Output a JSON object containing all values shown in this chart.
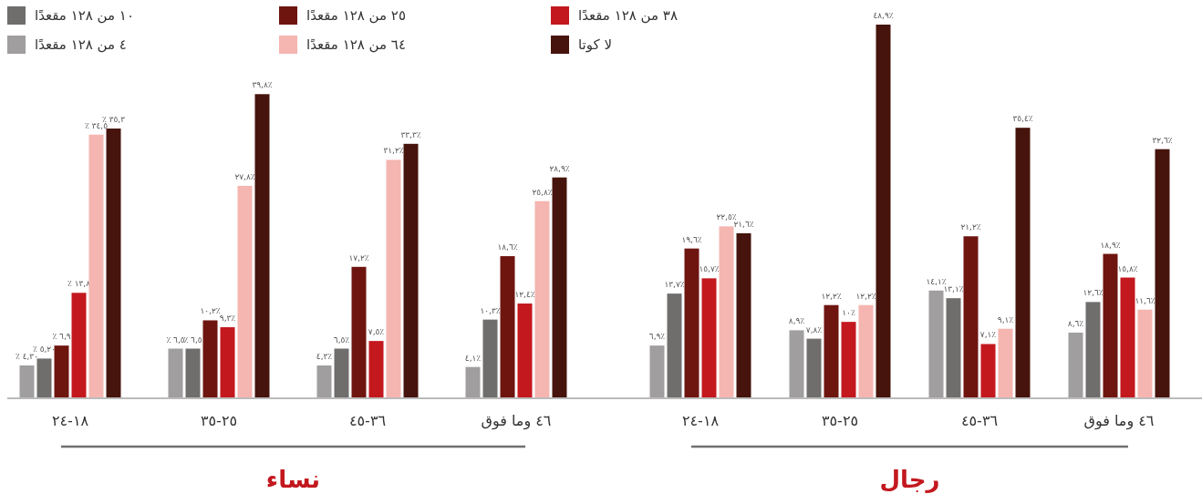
{
  "chart_data": {
    "type": "bar",
    "categories": [
      "١٨-٢٤",
      "٢٥-٣٥",
      "٣٦-٤٥",
      "٤٦ وما فوق",
      "١٨-٢٤",
      "٢٥-٣٥",
      "٣٦-٤٥",
      "٤٦ وما فوق"
    ],
    "series": [
      {
        "name": "٤ من ١٢٨ مقعدًا",
        "color": "#a09e9e",
        "values": [
          4.3,
          6.5,
          4.3,
          4.1,
          6.9,
          8.9,
          14.1,
          8.6
        ],
        "value_labels": [
          "٤,٣٠ ٪",
          "٦,٥ ٪",
          "٪٤,٣",
          "٪٤,١",
          "٪٦,٩",
          "٪٨,٩",
          "٪١٤,١",
          "٪٨,٦"
        ]
      },
      {
        "name": "١٠ من ١٢٨ مقعدًا",
        "color": "#706e6c",
        "values": [
          5.2,
          6.5,
          6.5,
          10.3,
          13.7,
          7.8,
          13.1,
          12.6
        ],
        "value_labels": [
          "٥,٢٠ ٪",
          "٦,٥ ٪",
          "٪٦,٥",
          "٪١٠,٣",
          "٪١٣,٧",
          "٪٧,٨",
          "٪١٣,١",
          "٪١٢,٦"
        ]
      },
      {
        "name": "٢٥ من ١٢٨ مقعدًا",
        "color": "#6e1510",
        "values": [
          6.9,
          10.2,
          17.2,
          18.6,
          19.6,
          12.2,
          21.2,
          18.9
        ],
        "value_labels": [
          "٦,٩ ٪",
          "٪١٠,٢",
          "٪١٧,٢",
          "٪١٨,٦",
          "٪١٩,٦",
          "٪١٢,٢",
          "٪٢١,٢",
          "٪١٨,٩"
        ]
      },
      {
        "name": "٣٨ من ١٢٨ مقعدًا",
        "color": "#c3181e",
        "values": [
          13.8,
          9.3,
          7.5,
          12.4,
          15.7,
          10,
          7.1,
          15.8
        ],
        "value_labels": [
          "١٣,٨ ٪",
          "٪٩,٣",
          "٪٧,٥",
          "٪١٢,٤",
          "٪١٥,٧",
          "٪١٠",
          "٪٧,١",
          "٪١٥,٨"
        ]
      },
      {
        "name": "٦٤ من ١٢٨ مقعدًا",
        "color": "#f5b5b0",
        "values": [
          34.5,
          27.8,
          31.2,
          25.8,
          22.5,
          12.2,
          9.1,
          11.6
        ],
        "value_labels": [
          "٣٤,٥ ٪",
          "٪٢٧,٨",
          "٪٣١,٢",
          "٪٢٥,٨",
          "٪٢٢,٥",
          "٪١٢,٢",
          "٪٩,١",
          "٪١١,٦"
        ]
      },
      {
        "name": "لا كوتا",
        "color": "#46140c",
        "values": [
          35.3,
          39.8,
          33.3,
          28.9,
          21.6,
          48.9,
          35.4,
          32.6
        ],
        "value_labels": [
          "٣٥,٣ ٪",
          "٪٣٩,٨",
          "٪٣٣,٣",
          "٪٢٨,٩",
          "٪٢١,٦",
          "٪٤٨,٩",
          "٪٣٥,٤",
          "٪٣٢,٦"
        ]
      }
    ],
    "annotations": [
      "نساء",
      "رجال"
    ],
    "legend": "top"
  }
}
